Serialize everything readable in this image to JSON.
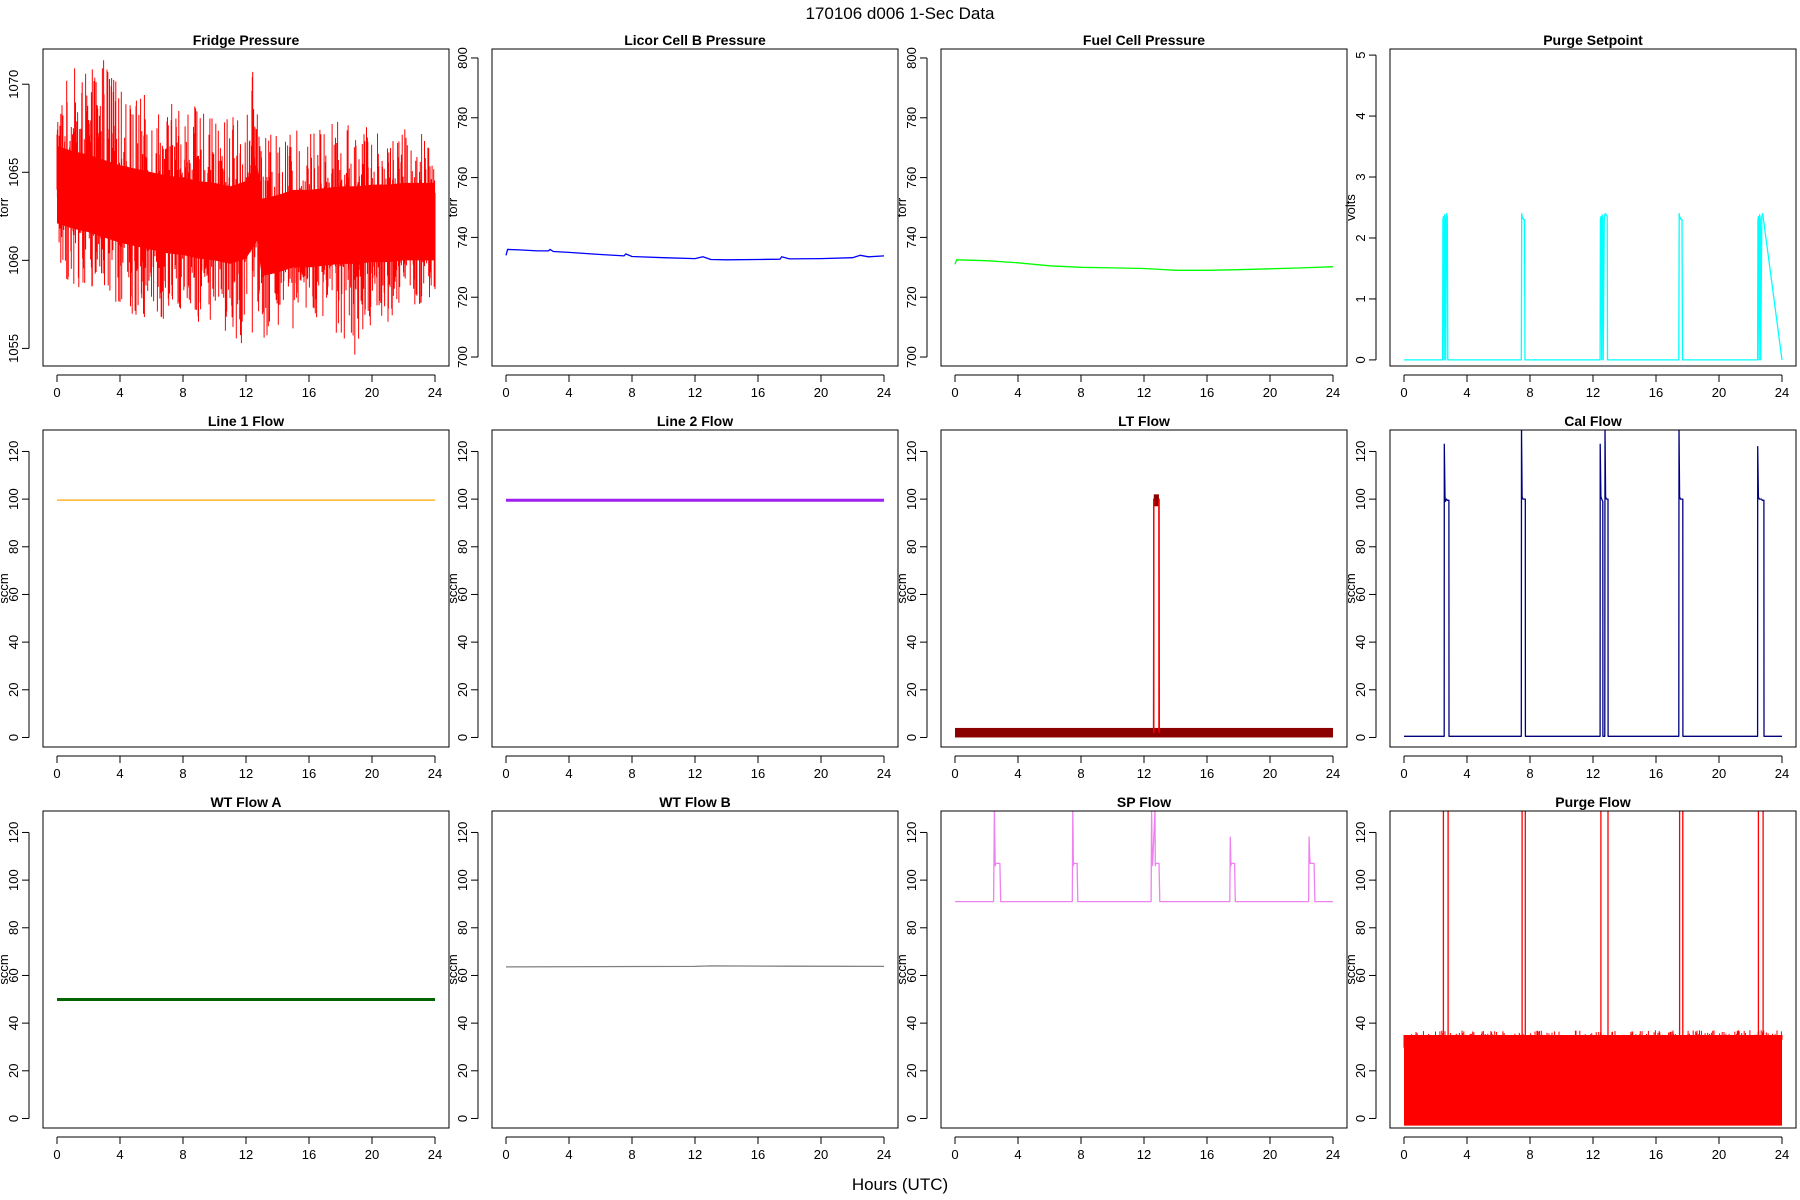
{
  "figure": {
    "title": "170106   d006   1-Sec Data",
    "xlabel": "Hours (UTC)"
  },
  "chart_data": [
    {
      "type": "line",
      "title": "Fridge Pressure",
      "ylabel": "torr",
      "color": "#ff0000",
      "xlim": [
        0,
        24
      ],
      "ylim": [
        1054,
        1072
      ],
      "xticks": [
        0,
        4,
        8,
        12,
        16,
        20,
        24
      ],
      "yticks": [
        1055,
        1060,
        1065,
        1070
      ],
      "grid": false,
      "series": [
        {
          "x": [
            0,
            1,
            2,
            3,
            4,
            5,
            6,
            7,
            8,
            9,
            10,
            11,
            12,
            12.7,
            13,
            14,
            15,
            16,
            17,
            18,
            19,
            20,
            21,
            22,
            23,
            24
          ],
          "center": [
            1064.3,
            1064.0,
            1063.8,
            1063.5,
            1063.2,
            1063.0,
            1062.8,
            1062.6,
            1062.5,
            1062.3,
            1062.2,
            1062.0,
            1062.3,
            1063.3,
            1061.3,
            1061.5,
            1061.8,
            1061.8,
            1061.9,
            1062.0,
            1062.0,
            1062.1,
            1062.1,
            1062.2,
            1062.2,
            1062.2
          ],
          "upper": [
            1069.5,
            1071.0,
            1070.5,
            1072.0,
            1069.8,
            1069.5,
            1069.3,
            1068.8,
            1069.5,
            1068.5,
            1068.0,
            1068.5,
            1068.0,
            1072.5,
            1067.0,
            1067.3,
            1067.5,
            1067.2,
            1068.5,
            1067.8,
            1067.8,
            1067.7,
            1067.6,
            1067.5,
            1067.8,
            1066.0
          ],
          "lower": [
            1059.5,
            1058.5,
            1058.0,
            1057.5,
            1057.5,
            1056.5,
            1057.0,
            1056.5,
            1057.0,
            1056.5,
            1056.5,
            1055.5,
            1055.0,
            1056.0,
            1055.5,
            1056.0,
            1055.5,
            1056.5,
            1056.0,
            1055.5,
            1054.5,
            1056.5,
            1056.5,
            1057.0,
            1056.5,
            1058.0
          ]
        }
      ]
    },
    {
      "type": "line",
      "title": "Licor Cell B Pressure",
      "ylabel": "torr",
      "color": "#0000ff",
      "xlim": [
        0,
        24
      ],
      "ylim": [
        697,
        803
      ],
      "xticks": [
        0,
        4,
        8,
        12,
        16,
        20,
        24
      ],
      "yticks": [
        700,
        720,
        740,
        760,
        780,
        800
      ],
      "grid": false,
      "series": [
        {
          "x": [
            0,
            0.1,
            1,
            2,
            2.7,
            2.8,
            3,
            4,
            6,
            7.5,
            7.6,
            8,
            10,
            12,
            12.5,
            13,
            14,
            16,
            17.4,
            17.5,
            18,
            20,
            22,
            22.5,
            23,
            24
          ],
          "values": [
            734.0,
            736.0,
            735.8,
            735.5,
            735.5,
            736.0,
            735.3,
            735.0,
            734.3,
            733.8,
            734.5,
            733.6,
            733.2,
            732.9,
            733.5,
            732.6,
            732.5,
            732.6,
            732.7,
            733.5,
            732.8,
            732.9,
            733.2,
            734.0,
            733.5,
            733.8
          ]
        }
      ]
    },
    {
      "type": "line",
      "title": "Fuel Cell Pressure",
      "ylabel": "torr",
      "color": "#00ff00",
      "xlim": [
        0,
        24
      ],
      "ylim": [
        697,
        803
      ],
      "xticks": [
        0,
        4,
        8,
        12,
        16,
        20,
        24
      ],
      "yticks": [
        700,
        720,
        740,
        760,
        780,
        800
      ],
      "grid": false,
      "series": [
        {
          "x": [
            0,
            0.1,
            2,
            4,
            6,
            8,
            10,
            12,
            13,
            14,
            16,
            18,
            20,
            22,
            24
          ],
          "values": [
            731.0,
            732.5,
            732.2,
            731.5,
            730.5,
            730.0,
            729.8,
            729.6,
            729.3,
            729.0,
            729.0,
            729.2,
            729.5,
            729.8,
            730.2
          ]
        }
      ]
    },
    {
      "type": "line",
      "title": "Purge Setpoint",
      "ylabel": "volts",
      "color": "#00ffff",
      "xlim": [
        0,
        24
      ],
      "ylim": [
        -0.1,
        5.1
      ],
      "xticks": [
        0,
        4,
        8,
        12,
        16,
        20,
        24
      ],
      "yticks": [
        0,
        1,
        2,
        3,
        4,
        5
      ],
      "grid": false,
      "series": [
        {
          "x": [
            0,
            2.45,
            2.47,
            2.5,
            2.55,
            2.58,
            2.62,
            2.65,
            2.7,
            2.75,
            2.78,
            7.45,
            7.47,
            7.5,
            7.6,
            7.65,
            7.68,
            12.45,
            12.47,
            12.5,
            12.55,
            12.58,
            12.62,
            12.65,
            12.72,
            12.78,
            12.8,
            12.9,
            12.92,
            17.45,
            17.47,
            17.5,
            17.6,
            17.65,
            17.68,
            22.45,
            22.47,
            22.5,
            22.55,
            22.58,
            22.62,
            22.65,
            22.72,
            22.78,
            22.8,
            24
          ],
          "values": [
            0,
            0,
            2.3,
            2.35,
            0,
            2.38,
            2.3,
            0,
            2.4,
            2.35,
            0,
            0,
            2.4,
            2.35,
            2.3,
            2.3,
            0,
            0,
            2.3,
            2.35,
            0,
            2.38,
            2.3,
            0,
            2.35,
            2.4,
            2.4,
            2.35,
            0,
            0,
            2.4,
            2.35,
            2.3,
            2.3,
            0,
            0,
            2.3,
            2.35,
            0,
            2.38,
            2.3,
            0,
            2.35,
            2.4,
            2.35,
            0
          ]
        }
      ]
    },
    {
      "type": "line",
      "title": "Line 1 Flow",
      "ylabel": "sccm",
      "color": "#ffa500",
      "xlim": [
        0,
        24
      ],
      "ylim": [
        -4,
        129
      ],
      "xticks": [
        0,
        4,
        8,
        12,
        16,
        20,
        24
      ],
      "yticks": [
        0,
        20,
        40,
        60,
        80,
        100,
        120
      ],
      "grid": false,
      "series": [
        {
          "x": [
            0,
            24
          ],
          "values": [
            99.6,
            99.6
          ]
        }
      ]
    },
    {
      "type": "line",
      "title": "Line 2 Flow",
      "ylabel": "sccm",
      "color": "#a020f0",
      "xlim": [
        0,
        24
      ],
      "ylim": [
        -4,
        129
      ],
      "xticks": [
        0,
        4,
        8,
        12,
        16,
        20,
        24
      ],
      "yticks": [
        0,
        20,
        40,
        60,
        80,
        100,
        120
      ],
      "grid": false,
      "series": [
        {
          "x": [
            0,
            24
          ],
          "values": [
            99.5,
            99.5
          ]
        }
      ]
    },
    {
      "type": "line",
      "title": "LT Flow",
      "ylabel": "sccm",
      "color": "#8b0000",
      "accent": "#ff0000",
      "xlim": [
        0,
        24
      ],
      "ylim": [
        -4,
        129
      ],
      "xticks": [
        0,
        4,
        8,
        12,
        16,
        20,
        24
      ],
      "yticks": [
        0,
        20,
        40,
        60,
        80,
        100,
        120
      ],
      "grid": false,
      "series": [
        {
          "x": [
            0,
            12.6,
            12.62,
            12.95,
            12.97,
            24
          ],
          "values": [
            1.5,
            1.5,
            100.0,
            100.0,
            1.5,
            1.5
          ],
          "band": [
            0,
            4
          ]
        }
      ]
    },
    {
      "type": "line",
      "title": "Cal Flow",
      "ylabel": "sccm",
      "color": "#000080",
      "xlim": [
        0,
        24
      ],
      "ylim": [
        -4,
        129
      ],
      "xticks": [
        0,
        4,
        8,
        12,
        16,
        20,
        24
      ],
      "yticks": [
        0,
        20,
        40,
        60,
        80,
        100,
        120
      ],
      "grid": false,
      "series": [
        {
          "x": [
            0,
            2.55,
            2.56,
            2.6,
            2.62,
            2.7,
            2.75,
            2.85,
            2.86,
            7.45,
            7.46,
            7.5,
            7.55,
            7.7,
            7.71,
            12.45,
            12.46,
            12.5,
            12.55,
            12.62,
            12.63,
            12.75,
            12.76,
            12.8,
            12.85,
            12.95,
            12.96,
            17.45,
            17.46,
            17.5,
            17.55,
            17.7,
            17.71,
            22.45,
            22.46,
            22.5,
            22.55,
            22.7,
            22.75,
            22.85,
            22.86,
            24
          ],
          "values": [
            0.5,
            0.5,
            123,
            101,
            99,
            100,
            99.5,
            99.5,
            0.5,
            0.5,
            130,
            101,
            100,
            100,
            0.5,
            0.5,
            123,
            101,
            100,
            99,
            0.5,
            0.5,
            130,
            101,
            100,
            100,
            0.5,
            0.5,
            130,
            101,
            100,
            100,
            0.5,
            0.5,
            122,
            101,
            100,
            100,
            99.5,
            99.5,
            0.5,
            0.5
          ]
        }
      ]
    },
    {
      "type": "line",
      "title": "WT Flow A",
      "ylabel": "sccm",
      "color": "#006400",
      "xlim": [
        0,
        24
      ],
      "ylim": [
        -4,
        129
      ],
      "xticks": [
        0,
        4,
        8,
        12,
        16,
        20,
        24
      ],
      "yticks": [
        0,
        20,
        40,
        60,
        80,
        100,
        120
      ],
      "grid": false,
      "series": [
        {
          "x": [
            0,
            24
          ],
          "values": [
            49.9,
            49.9
          ]
        }
      ]
    },
    {
      "type": "line",
      "title": "WT Flow B",
      "ylabel": "sccm",
      "color": "#808080",
      "xlim": [
        0,
        24
      ],
      "ylim": [
        -4,
        129
      ],
      "xticks": [
        0,
        4,
        8,
        12,
        16,
        20,
        24
      ],
      "yticks": [
        0,
        20,
        40,
        60,
        80,
        100,
        120
      ],
      "grid": false,
      "series": [
        {
          "x": [
            0,
            6,
            12,
            13,
            18,
            24
          ],
          "values": [
            63.6,
            63.7,
            63.8,
            64.0,
            63.9,
            63.8
          ]
        }
      ]
    },
    {
      "type": "line",
      "title": "SP Flow",
      "ylabel": "sccm",
      "color": "#ee82ee",
      "xlim": [
        0,
        24
      ],
      "ylim": [
        -4,
        129
      ],
      "xticks": [
        0,
        4,
        8,
        12,
        16,
        20,
        24
      ],
      "yticks": [
        0,
        20,
        40,
        60,
        80,
        100,
        120
      ],
      "grid": false,
      "series": [
        {
          "x": [
            0,
            2.45,
            2.5,
            2.55,
            2.6,
            2.85,
            2.9,
            7.45,
            7.48,
            7.52,
            7.55,
            7.75,
            7.8,
            12.45,
            12.48,
            12.52,
            12.55,
            12.7,
            12.72,
            12.75,
            12.8,
            12.95,
            13.0,
            17.45,
            17.48,
            17.52,
            17.55,
            17.75,
            17.8,
            22.45,
            22.48,
            22.52,
            22.55,
            22.8,
            22.85,
            24
          ],
          "values": [
            91,
            91,
            130,
            106,
            107,
            107,
            91,
            91,
            130,
            106,
            107,
            107,
            91,
            91,
            130,
            106,
            107,
            130,
            106,
            107,
            107,
            107,
            91,
            91,
            118,
            106,
            107,
            107,
            91,
            91,
            118,
            110,
            107,
            107,
            91,
            91
          ]
        }
      ]
    },
    {
      "type": "line",
      "title": "Purge Flow",
      "ylabel": "sccm",
      "color": "#ff0000",
      "xlim": [
        0,
        24
      ],
      "ylim": [
        -4,
        129
      ],
      "xticks": [
        0,
        4,
        8,
        12,
        16,
        20,
        24
      ],
      "yticks": [
        0,
        20,
        40,
        60,
        80,
        100,
        120
      ],
      "grid": false,
      "series": [
        {
          "x": [
            0,
            2.5,
            2.5,
            2.8,
            2.8,
            7.5,
            7.5,
            7.7,
            7.7,
            12.5,
            12.5,
            12.95,
            12.95,
            17.5,
            17.5,
            17.7,
            17.7,
            22.5,
            22.5,
            22.8,
            22.8,
            24
          ],
          "values": [
            30,
            30,
            130,
            130,
            30,
            30,
            130,
            130,
            30,
            30,
            130,
            130,
            30,
            30,
            130,
            130,
            30,
            30,
            130,
            130,
            30,
            30
          ],
          "band": [
            -3,
            35
          ]
        }
      ]
    }
  ]
}
